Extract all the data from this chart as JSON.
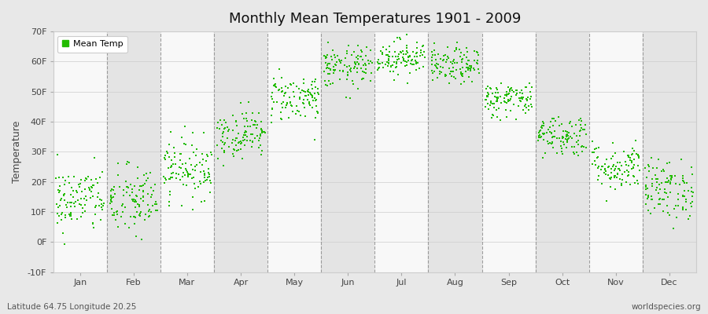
{
  "title": "Monthly Mean Temperatures 1901 - 2009",
  "ylabel": "Temperature",
  "xlabel_months": [
    "Jan",
    "Feb",
    "Mar",
    "Apr",
    "May",
    "Jun",
    "Jul",
    "Aug",
    "Sep",
    "Oct",
    "Nov",
    "Dec"
  ],
  "subtitle_left": "Latitude 64.75 Longitude 20.25",
  "subtitle_right": "worldspecies.org",
  "legend_label": "Mean Temp",
  "dot_color": "#22bb00",
  "figure_bg": "#e8e8e8",
  "band_light": "#f8f8f8",
  "band_dark": "#e4e4e4",
  "dashed_line_color": "#888888",
  "ylim": [
    -10,
    70
  ],
  "yticks": [
    -10,
    0,
    10,
    20,
    30,
    40,
    50,
    60,
    70
  ],
  "ytick_labels": [
    "-10F",
    "0F",
    "10F",
    "20F",
    "30F",
    "40F",
    "50F",
    "60F",
    "70F"
  ],
  "years": 109,
  "mean_temps_F": [
    14.0,
    13.5,
    24.5,
    36.0,
    48.0,
    58.0,
    61.5,
    58.5,
    47.5,
    35.5,
    25.0,
    17.5
  ],
  "std_temps_F": [
    5.5,
    6.0,
    5.0,
    4.0,
    4.0,
    3.5,
    3.0,
    3.0,
    3.0,
    3.5,
    4.0,
    5.0
  ],
  "seed": 42
}
